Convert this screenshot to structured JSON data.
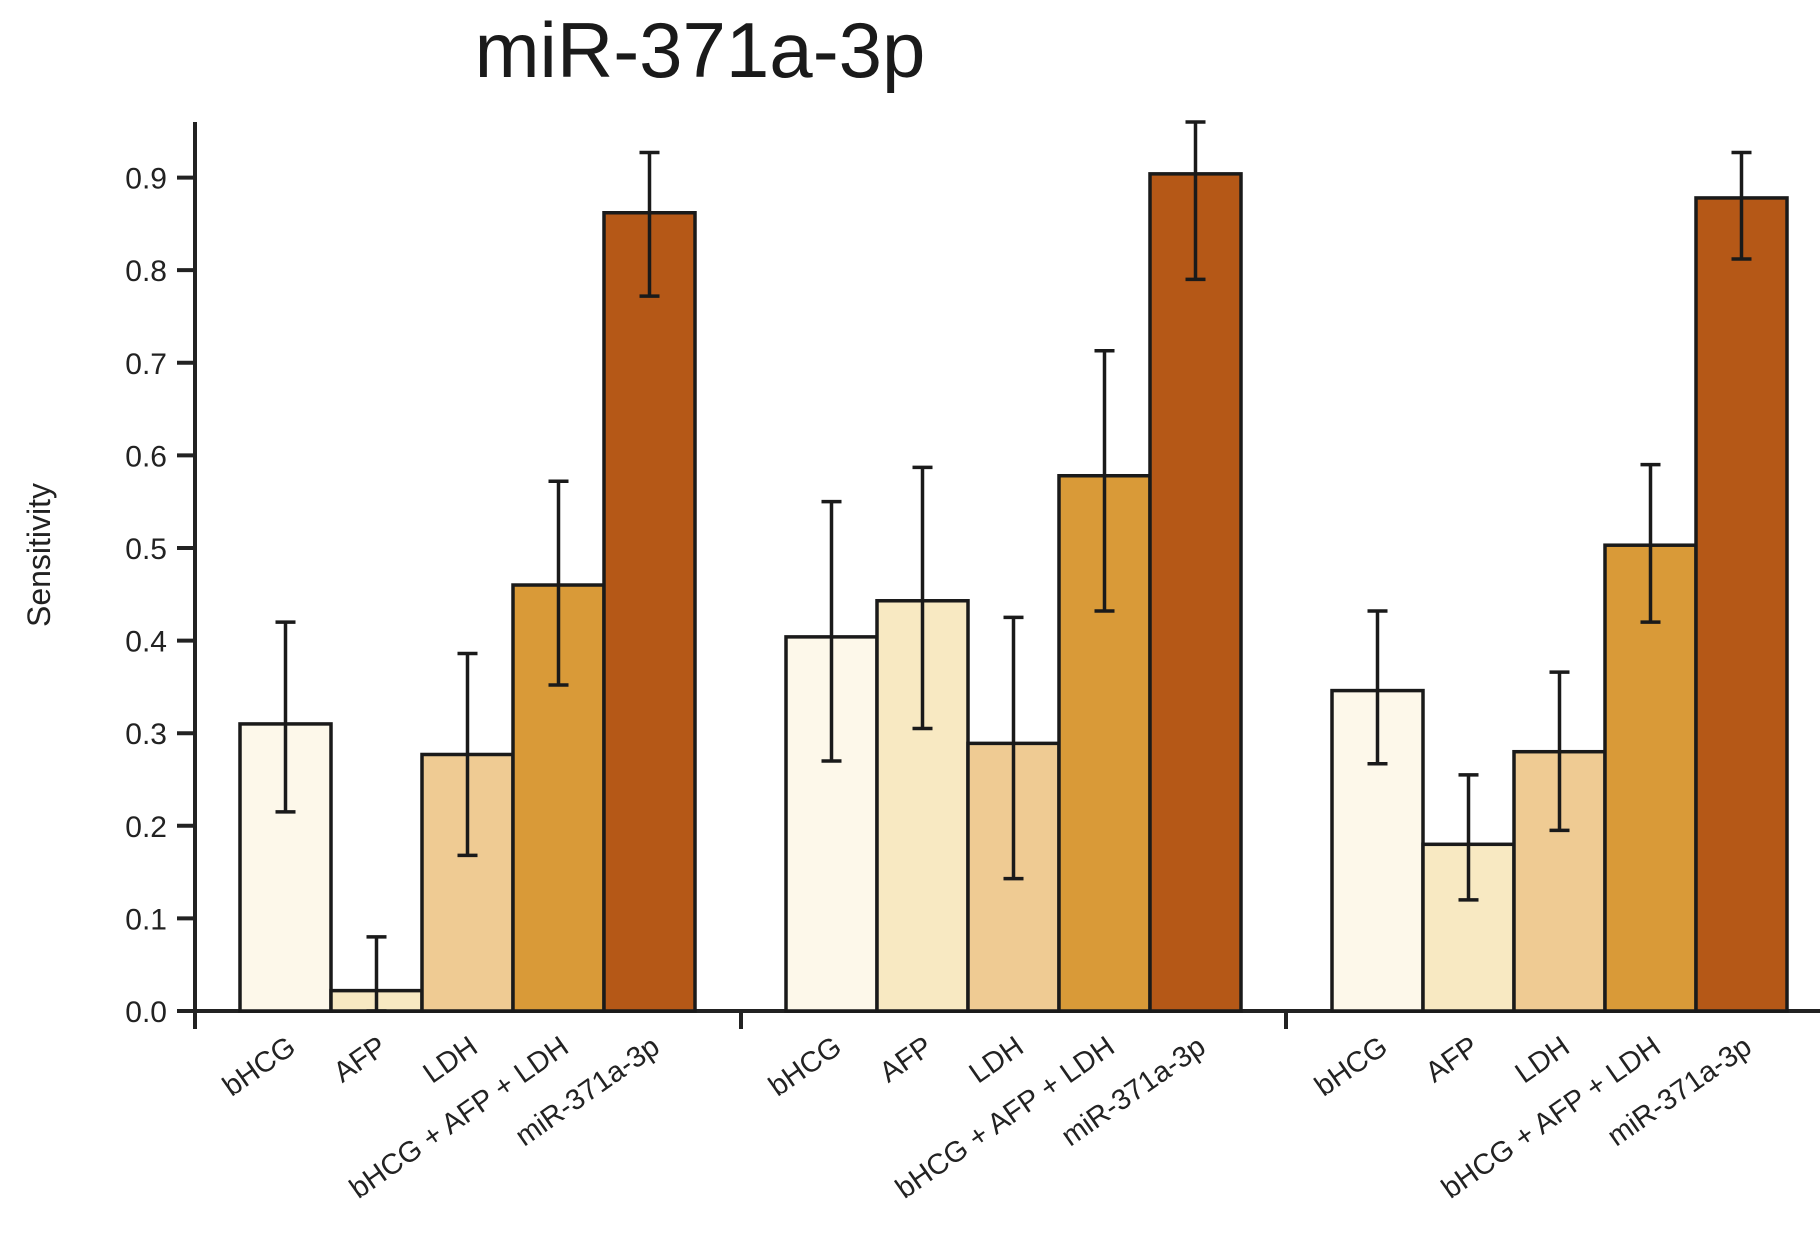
{
  "chart_data": {
    "type": "bar",
    "title": "miR-371a-3p",
    "xlabel": "",
    "ylabel": "Sensitivity",
    "ylim": [
      0,
      0.96
    ],
    "yticks": [
      "0.0",
      "0.1",
      "0.2",
      "0.3",
      "0.4",
      "0.5",
      "0.6",
      "0.7",
      "0.8",
      "0.9"
    ],
    "ytick_values": [
      0,
      0.1,
      0.2,
      0.3,
      0.4,
      0.5,
      0.6,
      0.7,
      0.8,
      0.9
    ],
    "categories": [
      "bHCG",
      "AFP",
      "LDH",
      "bHCG + AFP + LDH",
      "miR-371a-3p"
    ],
    "colors": [
      "#fdf8ea",
      "#f8e9c2",
      "#efcb93",
      "#d99a38",
      "#b55817"
    ],
    "groups": [
      {
        "values": [
          0.31,
          0.022,
          0.277,
          0.46,
          0.862
        ],
        "err_low": [
          0.215,
          0.0,
          0.168,
          0.352,
          0.772
        ],
        "err_high": [
          0.42,
          0.08,
          0.386,
          0.572,
          0.927
        ]
      },
      {
        "values": [
          0.404,
          0.443,
          0.289,
          0.578,
          0.904
        ],
        "err_low": [
          0.27,
          0.305,
          0.143,
          0.432,
          0.79
        ],
        "err_high": [
          0.55,
          0.587,
          0.425,
          0.713,
          0.96
        ]
      },
      {
        "values": [
          0.346,
          0.18,
          0.28,
          0.503,
          0.878
        ],
        "err_low": [
          0.267,
          0.12,
          0.195,
          0.42,
          0.812
        ],
        "err_high": [
          0.432,
          0.255,
          0.366,
          0.59,
          0.927
        ]
      }
    ],
    "grid": false,
    "legend": "none"
  }
}
